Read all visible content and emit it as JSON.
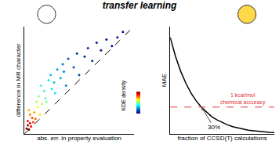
{
  "title": "transfer learning",
  "chart_data": [
    {
      "type": "scatter",
      "xlabel": "abs. err. in property evaluation",
      "ylabel": "difference in MR character",
      "xlim": [
        0,
        1
      ],
      "ylim": [
        0,
        1
      ],
      "tick_labels": false,
      "series": [
        {
          "type": "scatter",
          "x": [
            0.02,
            0.03,
            0.04,
            0.05,
            0.03,
            0.06,
            0.07,
            0.05,
            0.08,
            0.04,
            0.09,
            0.1,
            0.12,
            0.11,
            0.14,
            0.13,
            0.16,
            0.18,
            0.15,
            0.2,
            0.22,
            0.19,
            0.25,
            0.24,
            0.28,
            0.3,
            0.27,
            0.33,
            0.35,
            0.38,
            0.4,
            0.36,
            0.45,
            0.48,
            0.5,
            0.55,
            0.58,
            0.62,
            0.66,
            0.7,
            0.75,
            0.8,
            0.85,
            0.9
          ],
          "values": [
            0.05,
            0.08,
            0.04,
            0.1,
            0.12,
            0.07,
            0.15,
            0.18,
            0.11,
            0.22,
            0.2,
            0.14,
            0.25,
            0.3,
            0.18,
            0.35,
            0.28,
            0.4,
            0.45,
            0.3,
            0.5,
            0.33,
            0.42,
            0.55,
            0.38,
            0.6,
            0.48,
            0.52,
            0.65,
            0.45,
            0.7,
            0.58,
            0.62,
            0.75,
            0.55,
            0.72,
            0.8,
            0.68,
            0.85,
            0.78,
            0.88,
            0.82,
            0.9,
            0.95
          ],
          "density": [
            1,
            0.95,
            0.98,
            0.9,
            0.85,
            0.88,
            0.8,
            0.75,
            0.82,
            0.7,
            0.72,
            0.78,
            0.6,
            0.55,
            0.65,
            0.5,
            0.55,
            0.45,
            0.4,
            0.5,
            0.35,
            0.45,
            0.35,
            0.3,
            0.35,
            0.25,
            0.3,
            0.25,
            0.2,
            0.22,
            0.15,
            0.2,
            0.15,
            0.12,
            0.14,
            0.1,
            0.08,
            0.1,
            0.06,
            0.06,
            0.05,
            0.04,
            0.03,
            0.02
          ]
        },
        {
          "type": "line",
          "x": [
            0,
            1
          ],
          "values": [
            0,
            1
          ],
          "color": "#000000",
          "line_style": "dash"
        }
      ],
      "colorbar": {
        "title": "KDE density",
        "range": [
          0,
          1
        ]
      }
    },
    {
      "type": "line",
      "xlabel": "fraction of CCSD(T) calculations",
      "ylabel": "MAE",
      "xlim": [
        0,
        1
      ],
      "ylim": [
        0,
        4
      ],
      "tick_labels": false,
      "x": [
        0,
        0.05,
        0.1,
        0.15,
        0.2,
        0.25,
        0.3,
        0.35,
        0.4,
        0.45,
        0.5,
        0.55,
        0.6,
        0.65,
        0.7,
        0.75,
        0.8,
        0.85,
        0.9,
        0.95,
        1
      ],
      "values": [
        3.6,
        2.9,
        2.34,
        1.89,
        1.52,
        1.23,
        0.99,
        0.8,
        0.64,
        0.52,
        0.42,
        0.34,
        0.27,
        0.22,
        0.18,
        0.14,
        0.12,
        0.09,
        0.08,
        0.06,
        0.05
      ],
      "color": "#000000",
      "reference_lines": [
        {
          "y": 1,
          "color": "#e03030",
          "line_style": "dash",
          "label": [
            "1 kcal/mol",
            "chemical accuracy"
          ]
        }
      ],
      "annotations": [
        {
          "x": 0.3,
          "y": 1,
          "text": "30%"
        }
      ]
    }
  ]
}
